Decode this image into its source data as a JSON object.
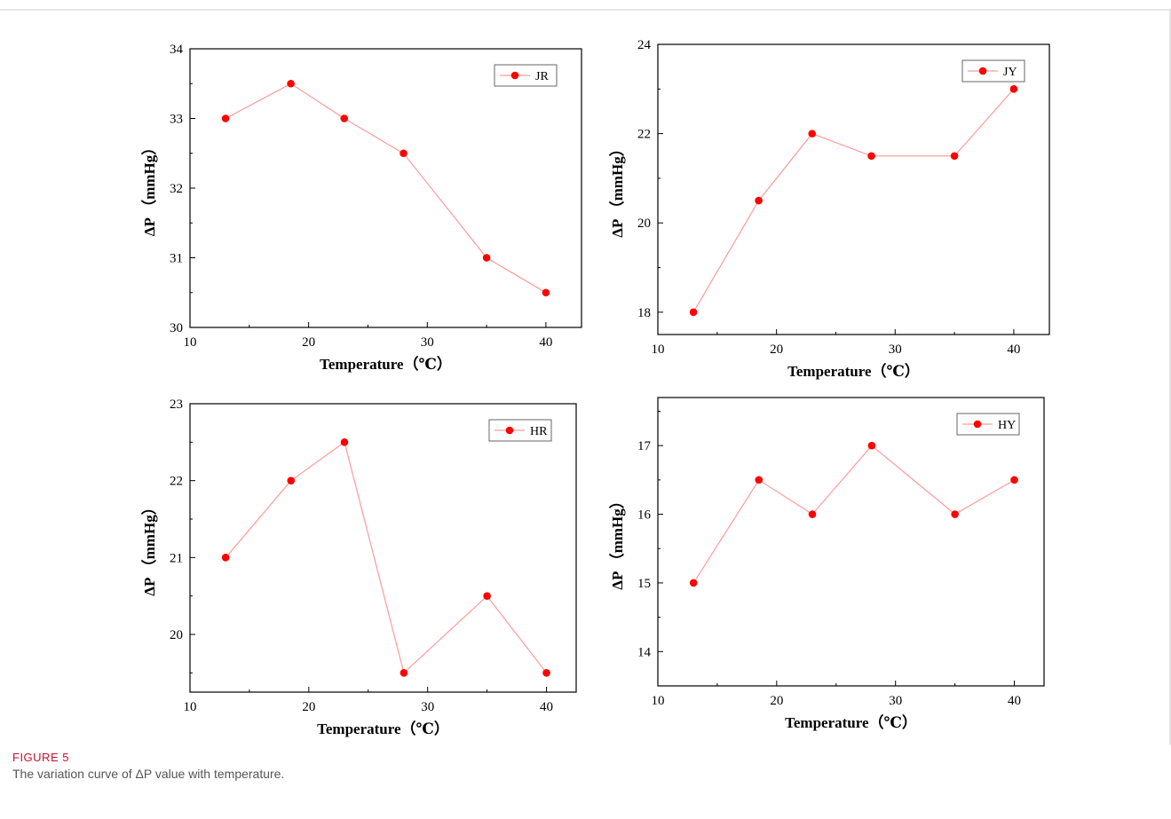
{
  "figure": {
    "label": "FIGURE 5",
    "caption": "The variation curve of ΔP value with temperature."
  },
  "style": {
    "series_color": "#ff0000",
    "line_color": "#ff9a9a",
    "border_color": "#cccccc"
  },
  "chart_data": [
    {
      "type": "line",
      "x": [
        13,
        18.5,
        23,
        28,
        35,
        40
      ],
      "series": [
        {
          "name": "JR",
          "values": [
            33,
            33.5,
            33,
            32.5,
            31,
            30.5
          ]
        }
      ],
      "xlabel": "Temperature（℃）",
      "ylabel": "ΔP （mmHg）",
      "xlim": [
        10,
        43
      ],
      "ylim": [
        30,
        34
      ],
      "xticks": [
        10,
        20,
        30,
        40
      ],
      "yticks": [
        30,
        31,
        32,
        33,
        34
      ],
      "legend": "top-right"
    },
    {
      "type": "line",
      "x": [
        13,
        18.5,
        23,
        28,
        35,
        40
      ],
      "series": [
        {
          "name": "JY",
          "values": [
            18,
            20.5,
            22,
            21.5,
            21.5,
            23
          ]
        }
      ],
      "xlabel": "Temperature（℃）",
      "ylabel": "ΔP （mmHg）",
      "xlim": [
        10,
        43
      ],
      "ylim": [
        17.5,
        24
      ],
      "xticks": [
        10,
        20,
        30,
        40
      ],
      "yticks": [
        18,
        20,
        22,
        24
      ],
      "legend": "top-right"
    },
    {
      "type": "line",
      "x": [
        13,
        18.5,
        23,
        28,
        35,
        40
      ],
      "series": [
        {
          "name": "HR",
          "values": [
            21,
            22,
            22.5,
            19.5,
            20.5,
            19.5
          ]
        }
      ],
      "xlabel": "Temperature（℃）",
      "ylabel": "ΔP （mmHg）",
      "xlim": [
        10,
        42.5
      ],
      "ylim": [
        19.25,
        23
      ],
      "xticks": [
        10,
        20,
        30,
        40
      ],
      "yticks": [
        20,
        21,
        22,
        23
      ],
      "legend": "top-right"
    },
    {
      "type": "line",
      "x": [
        13,
        18.5,
        23,
        28,
        35,
        40
      ],
      "series": [
        {
          "name": "HY",
          "values": [
            15,
            16.5,
            16,
            17,
            16,
            16.5
          ]
        }
      ],
      "xlabel": "Temperature（℃）",
      "ylabel": "ΔP （mmHg）",
      "xlim": [
        10,
        42.5
      ],
      "ylim": [
        13.5,
        17.7
      ],
      "xticks": [
        10,
        20,
        30,
        40
      ],
      "yticks": [
        14,
        15,
        16,
        17
      ],
      "legend": "top-right"
    }
  ]
}
